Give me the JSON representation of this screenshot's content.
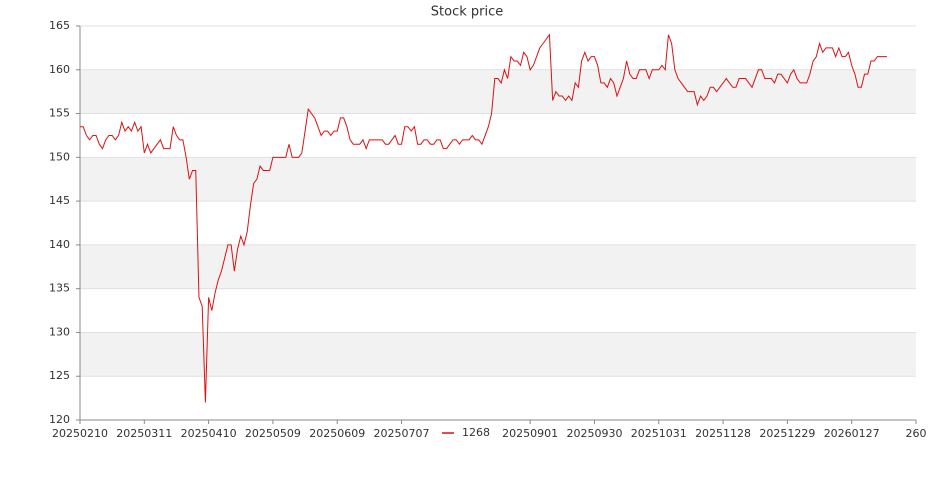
{
  "chart_data": {
    "type": "line",
    "title": "Stock price",
    "series": [
      {
        "name": "1268",
        "color": "#dd1111",
        "values": [
          153.5,
          153.5,
          152.5,
          152,
          152.5,
          152.5,
          151.5,
          151,
          152,
          152.5,
          152.5,
          152,
          152.5,
          154,
          153,
          153.5,
          153,
          154,
          153,
          153.5,
          150.5,
          151.5,
          150.5,
          151,
          151.5,
          152,
          151,
          151,
          151,
          153.5,
          152.5,
          152,
          152,
          150,
          147.5,
          148.5,
          148.5,
          134,
          133,
          122,
          134,
          132.5,
          134.5,
          136,
          137,
          138.5,
          140,
          140,
          137,
          139.5,
          141,
          140,
          141.5,
          144.5,
          147,
          147.5,
          149,
          148.5,
          148.5,
          148.5,
          150,
          150,
          150,
          150,
          150,
          151.5,
          150,
          150,
          150,
          150.5,
          153,
          155.5,
          155,
          154.5,
          153.5,
          152.5,
          153,
          153,
          152.5,
          153,
          153,
          154.5,
          154.5,
          153.5,
          152,
          151.5,
          151.5,
          151.5,
          152,
          151,
          152,
          152,
          152,
          152,
          152,
          151.5,
          151.5,
          152,
          152.5,
          151.5,
          151.5,
          153.5,
          153.5,
          153,
          153.5,
          151.5,
          151.5,
          152,
          152,
          151.5,
          151.5,
          152,
          152,
          151,
          151,
          151.5,
          152,
          152,
          151.5,
          152,
          152,
          152,
          152.5,
          152,
          152,
          151.5,
          152.5,
          153.5,
          155,
          159,
          159,
          158.5,
          160,
          159,
          161.5,
          161,
          161,
          160.5,
          162,
          161.5,
          160,
          160.5,
          161.5,
          162.5,
          163,
          163.5,
          164,
          156.5,
          157.5,
          157,
          157,
          156.5,
          157,
          156.5,
          158.5,
          158,
          161,
          162,
          161,
          161.5,
          161.5,
          160.5,
          158.5,
          158.5,
          158,
          159,
          158.5,
          157,
          158,
          159,
          161,
          159.5,
          159,
          159,
          160,
          160,
          160,
          159,
          160,
          160,
          160,
          160.5,
          160,
          164,
          163,
          160,
          159,
          158.5,
          158,
          157.5,
          157.5,
          157.5,
          156,
          157,
          156.5,
          157,
          158,
          158,
          157.5,
          158,
          158.5,
          159,
          158.5,
          158,
          158,
          159,
          159,
          159,
          158.5,
          158,
          159,
          160,
          160,
          159,
          159,
          159,
          158.5,
          159.5,
          159.5,
          159,
          158.5,
          159.5,
          160,
          159,
          158.5,
          158.5,
          158.5,
          159.5,
          161,
          161.5,
          163,
          162,
          162.5,
          162.5,
          162.5,
          161.5,
          162.5,
          161.5,
          161.5,
          162,
          160.5,
          159.5,
          158,
          158,
          159.5,
          159.5,
          161,
          161,
          161.5,
          161.5,
          161.5,
          161.5
        ]
      }
    ],
    "xlim": [
      0,
      260
    ],
    "xticks": [
      {
        "value": 0,
        "label": "20250210"
      },
      {
        "value": 20,
        "label": "20250311"
      },
      {
        "value": 40,
        "label": "20250410"
      },
      {
        "value": 60,
        "label": "20250509"
      },
      {
        "value": 80,
        "label": "20250609"
      },
      {
        "value": 100,
        "label": "20250707"
      },
      {
        "value": 140,
        "label": "20250901"
      },
      {
        "value": 160,
        "label": "20250930"
      },
      {
        "value": 180,
        "label": "20251031"
      },
      {
        "value": 200,
        "label": "20251128"
      },
      {
        "value": 220,
        "label": "20251229"
      },
      {
        "value": 240,
        "label": "20260127"
      },
      {
        "value": 260,
        "label": "260"
      }
    ],
    "ylim": [
      120,
      165
    ],
    "yticks": [
      120,
      125,
      130,
      135,
      140,
      145,
      150,
      155,
      160,
      165
    ],
    "grid": true,
    "legend": "bottom"
  }
}
